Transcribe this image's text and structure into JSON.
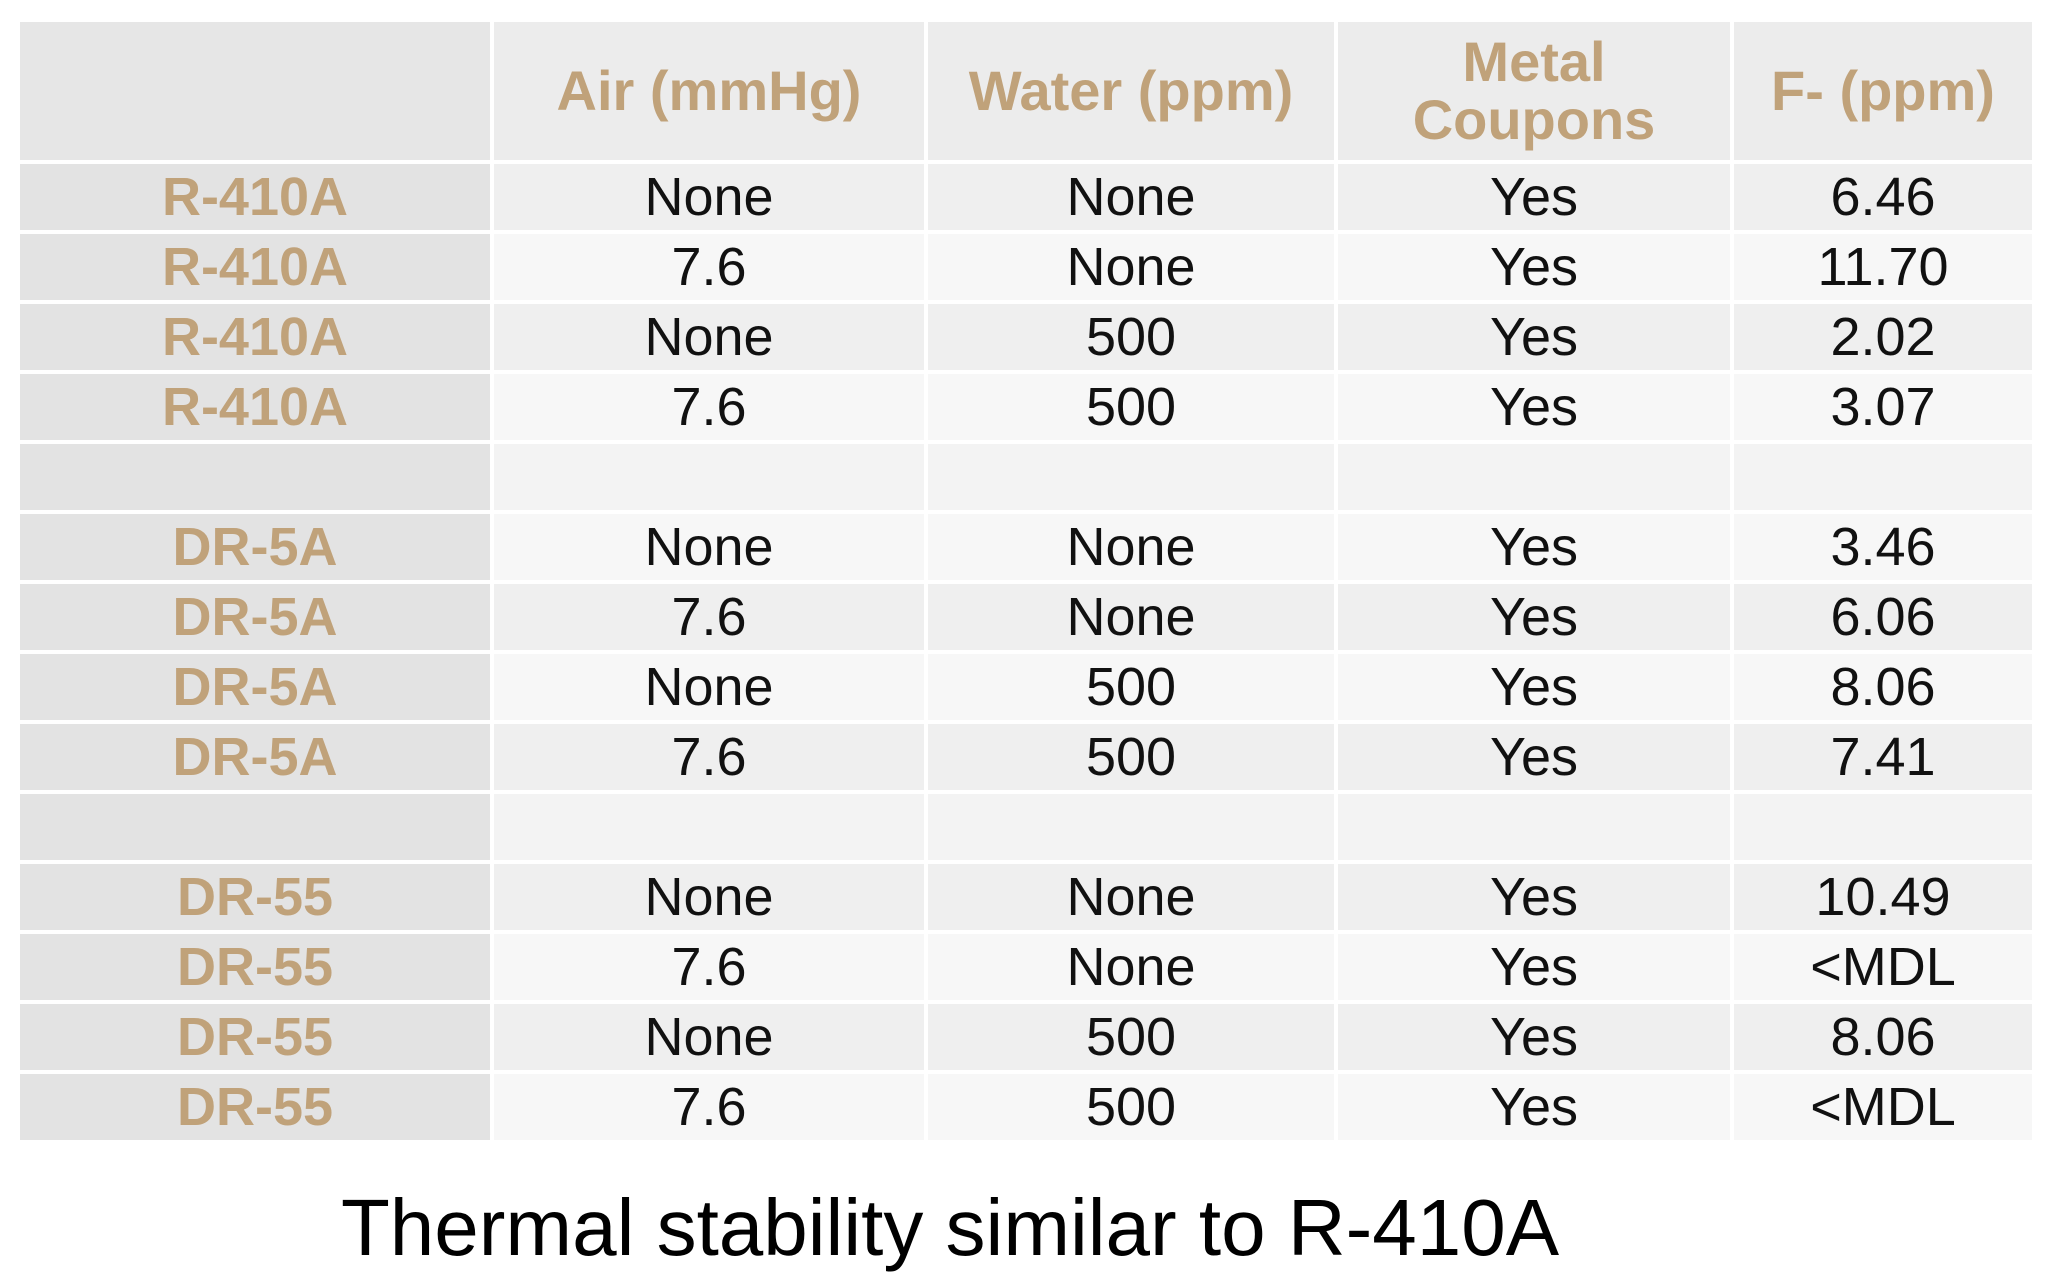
{
  "colors": {
    "accent": "#c0a27a",
    "label_bg": "#e3e3e3",
    "header_bg": "#ececec",
    "row_odd_bg": "#efefef",
    "row_even_bg": "#f7f7f7",
    "text": "#111111"
  },
  "table": {
    "columns": [
      "",
      "Air (mmHg)",
      "Water (ppm)",
      "Metal Coupons",
      "F- (ppm)"
    ],
    "rows": [
      [
        "R-410A",
        "None",
        "None",
        "Yes",
        "6.46"
      ],
      [
        "R-410A",
        "7.6",
        "None",
        "Yes",
        "11.70"
      ],
      [
        "R-410A",
        "None",
        "500",
        "Yes",
        "2.02"
      ],
      [
        "R-410A",
        "7.6",
        "500",
        "Yes",
        "3.07"
      ],
      [
        "",
        "",
        "",
        "",
        ""
      ],
      [
        "DR-5A",
        "None",
        "None",
        "Yes",
        "3.46"
      ],
      [
        "DR-5A",
        "7.6",
        "None",
        "Yes",
        "6.06"
      ],
      [
        "DR-5A",
        "None",
        "500",
        "Yes",
        "8.06"
      ],
      [
        "DR-5A",
        "7.6",
        "500",
        "Yes",
        "7.41"
      ],
      [
        "",
        "",
        "",
        "",
        ""
      ],
      [
        "DR-55",
        "None",
        "None",
        "Yes",
        "10.49"
      ],
      [
        "DR-55",
        "7.6",
        "None",
        "Yes",
        "<MDL"
      ],
      [
        "DR-55",
        "None",
        "500",
        "Yes",
        "8.06"
      ],
      [
        "DR-55",
        "7.6",
        "500",
        "Yes",
        "<MDL"
      ]
    ]
  },
  "caption": "Thermal stability similar to R-410A"
}
